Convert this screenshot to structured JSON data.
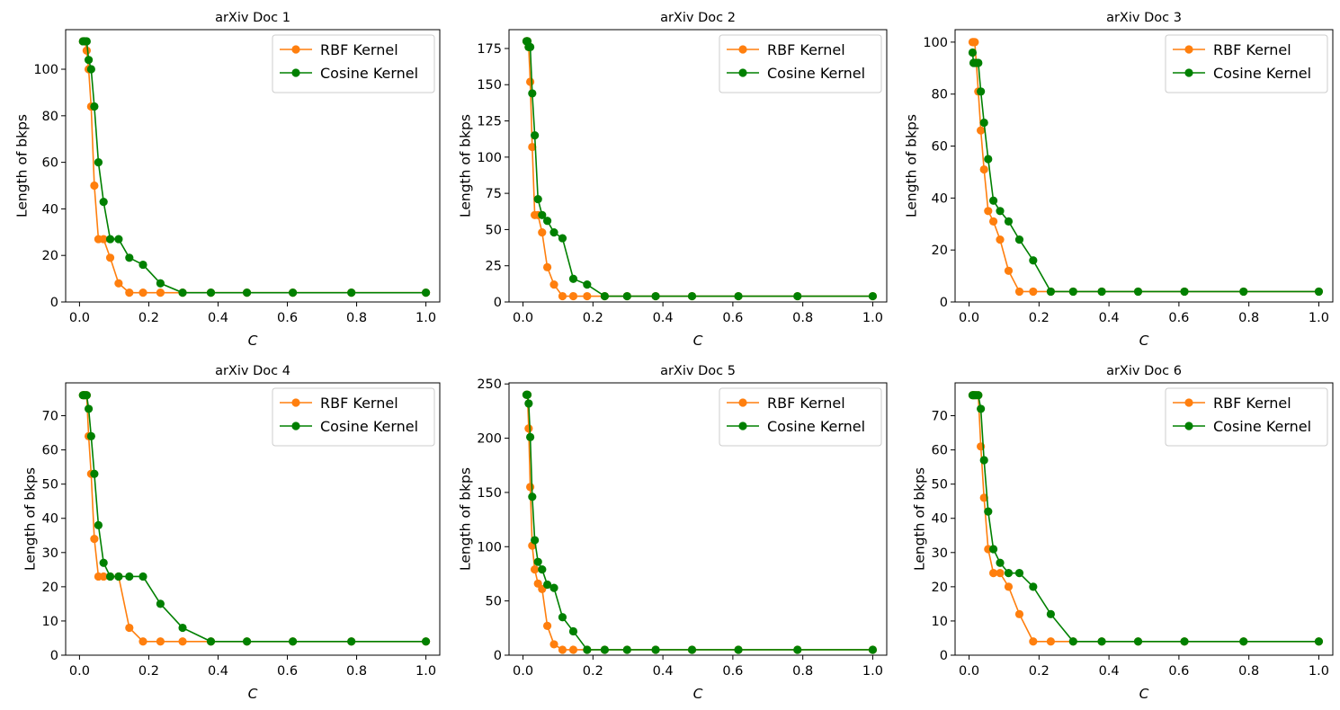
{
  "chart_data": [
    {
      "type": "line",
      "title": "arXiv Doc 1",
      "xlabel": "C",
      "ylabel": "Length of bkps",
      "xlim": [
        -0.04,
        1.04
      ],
      "ylim": [
        0,
        117
      ],
      "xticks": [
        0.0,
        0.2,
        0.4,
        0.6,
        0.8,
        1.0
      ],
      "xtick_labels": [
        "0.0",
        "0.2",
        "0.4",
        "0.6",
        "0.8",
        "1.0"
      ],
      "yticks": [
        0,
        20,
        40,
        60,
        80,
        100
      ],
      "ytick_labels": [
        "0",
        "20",
        "40",
        "60",
        "80",
        "100"
      ],
      "legend_position": "upper right",
      "series": [
        {
          "name": "RBF Kernel",
          "color": "#ff7f0e",
          "x": [
            0.01,
            0.0127,
            0.0162,
            0.0207,
            0.0264,
            0.0336,
            0.0428,
            0.0546,
            0.0695,
            0.0886,
            0.1129,
            0.1438,
            0.1833,
            0.2336,
            0.2976,
            0.3793,
            0.4833,
            0.6158,
            0.7848,
            1.0
          ],
          "y": [
            112,
            112,
            112,
            108,
            100,
            84,
            50,
            27,
            27,
            19,
            8,
            4,
            4,
            4,
            4,
            4,
            4,
            4,
            4,
            4
          ]
        },
        {
          "name": "Cosine Kernel",
          "color": "#008000",
          "x": [
            0.01,
            0.0127,
            0.0162,
            0.0207,
            0.0264,
            0.0336,
            0.0428,
            0.0546,
            0.0695,
            0.0886,
            0.1129,
            0.1438,
            0.1833,
            0.2336,
            0.2976,
            0.3793,
            0.4833,
            0.6158,
            0.7848,
            1.0
          ],
          "y": [
            112,
            112,
            112,
            112,
            104,
            100,
            84,
            60,
            43,
            27,
            27,
            19,
            16,
            8,
            4,
            4,
            4,
            4,
            4,
            4
          ]
        }
      ]
    },
    {
      "type": "line",
      "title": "arXiv Doc 2",
      "xlabel": "C",
      "ylabel": "Length of bkps",
      "xlim": [
        -0.04,
        1.04
      ],
      "ylim": [
        0,
        188
      ],
      "xticks": [
        0.0,
        0.2,
        0.4,
        0.6,
        0.8,
        1.0
      ],
      "xtick_labels": [
        "0.0",
        "0.2",
        "0.4",
        "0.6",
        "0.8",
        "1.0"
      ],
      "yticks": [
        0,
        25,
        50,
        75,
        100,
        125,
        150,
        175
      ],
      "ytick_labels": [
        "0",
        "25",
        "50",
        "75",
        "100",
        "125",
        "150",
        "175"
      ],
      "legend_position": "upper right",
      "series": [
        {
          "name": "RBF Kernel",
          "color": "#ff7f0e",
          "x": [
            0.01,
            0.0127,
            0.0162,
            0.0207,
            0.0264,
            0.0336,
            0.0428,
            0.0546,
            0.0695,
            0.0886,
            0.1129,
            0.1438,
            0.1833,
            0.2336,
            0.2976,
            0.3793,
            0.4833,
            0.6158,
            0.7848,
            1.0
          ],
          "y": [
            180,
            180,
            176,
            152,
            107,
            60,
            60,
            48,
            24,
            12,
            4,
            4,
            4,
            4,
            4,
            4,
            4,
            4,
            4,
            4
          ]
        },
        {
          "name": "Cosine Kernel",
          "color": "#008000",
          "x": [
            0.01,
            0.0127,
            0.0162,
            0.0207,
            0.0264,
            0.0336,
            0.0428,
            0.0546,
            0.0695,
            0.0886,
            0.1129,
            0.1438,
            0.1833,
            0.2336,
            0.2976,
            0.3793,
            0.4833,
            0.6158,
            0.7848,
            1.0
          ],
          "y": [
            180,
            180,
            176,
            176,
            144,
            115,
            71,
            60,
            56,
            48,
            44,
            16,
            12,
            4,
            4,
            4,
            4,
            4,
            4,
            4
          ]
        }
      ]
    },
    {
      "type": "line",
      "title": "arXiv Doc 3",
      "xlabel": "C",
      "ylabel": "Length of bkps",
      "xlim": [
        -0.04,
        1.04
      ],
      "ylim": [
        0,
        104.8
      ],
      "xticks": [
        0.0,
        0.2,
        0.4,
        0.6,
        0.8,
        1.0
      ],
      "xtick_labels": [
        "0.0",
        "0.2",
        "0.4",
        "0.6",
        "0.8",
        "1.0"
      ],
      "yticks": [
        0,
        20,
        40,
        60,
        80,
        100
      ],
      "ytick_labels": [
        "0",
        "20",
        "40",
        "60",
        "80",
        "100"
      ],
      "legend_position": "upper right",
      "series": [
        {
          "name": "RBF Kernel",
          "color": "#ff7f0e",
          "x": [
            0.01,
            0.0127,
            0.0162,
            0.0207,
            0.0264,
            0.0336,
            0.0428,
            0.0546,
            0.0695,
            0.0886,
            0.1129,
            0.1438,
            0.1833,
            0.2336,
            0.2976,
            0.3793,
            0.4833,
            0.6158,
            0.7848,
            1.0
          ],
          "y": [
            100,
            100,
            100,
            92,
            81,
            66,
            51,
            35,
            31,
            24,
            12,
            4,
            4,
            4,
            4,
            4,
            4,
            4,
            4,
            4
          ]
        },
        {
          "name": "Cosine Kernel",
          "color": "#008000",
          "x": [
            0.01,
            0.0127,
            0.0162,
            0.0207,
            0.0264,
            0.0336,
            0.0428,
            0.0546,
            0.0695,
            0.0886,
            0.1129,
            0.1438,
            0.1833,
            0.2336,
            0.2976,
            0.3793,
            0.4833,
            0.6158,
            0.7848,
            1.0
          ],
          "y": [
            96,
            92,
            92,
            92,
            92,
            81,
            69,
            55,
            39,
            35,
            31,
            24,
            16,
            4,
            4,
            4,
            4,
            4,
            4,
            4
          ]
        }
      ]
    },
    {
      "type": "line",
      "title": "arXiv Doc 4",
      "xlabel": "C",
      "ylabel": "Length of bkps",
      "xlim": [
        -0.04,
        1.04
      ],
      "ylim": [
        0,
        79.6
      ],
      "xticks": [
        0.0,
        0.2,
        0.4,
        0.6,
        0.8,
        1.0
      ],
      "xtick_labels": [
        "0.0",
        "0.2",
        "0.4",
        "0.6",
        "0.8",
        "1.0"
      ],
      "yticks": [
        0,
        10,
        20,
        30,
        40,
        50,
        60,
        70
      ],
      "ytick_labels": [
        "0",
        "10",
        "20",
        "30",
        "40",
        "50",
        "60",
        "70"
      ],
      "legend_position": "upper right",
      "series": [
        {
          "name": "RBF Kernel",
          "color": "#ff7f0e",
          "x": [
            0.01,
            0.0127,
            0.0162,
            0.0207,
            0.0264,
            0.0336,
            0.0428,
            0.0546,
            0.0695,
            0.0886,
            0.1129,
            0.1438,
            0.1833,
            0.2336,
            0.2976,
            0.3793,
            0.4833,
            0.6158,
            0.7848,
            1.0
          ],
          "y": [
            76,
            76,
            76,
            76,
            64,
            53,
            34,
            23,
            23,
            23,
            23,
            8,
            4,
            4,
            4,
            4,
            4,
            4,
            4,
            4
          ]
        },
        {
          "name": "Cosine Kernel",
          "color": "#008000",
          "x": [
            0.01,
            0.0127,
            0.0162,
            0.0207,
            0.0264,
            0.0336,
            0.0428,
            0.0546,
            0.0695,
            0.0886,
            0.1129,
            0.1438,
            0.1833,
            0.2336,
            0.2976,
            0.3793,
            0.4833,
            0.6158,
            0.7848,
            1.0
          ],
          "y": [
            76,
            76,
            76,
            76,
            72,
            64,
            53,
            38,
            27,
            23,
            23,
            23,
            23,
            15,
            8,
            4,
            4,
            4,
            4,
            4
          ]
        }
      ]
    },
    {
      "type": "line",
      "title": "arXiv Doc 5",
      "xlabel": "C",
      "ylabel": "Length of bkps",
      "xlim": [
        -0.04,
        1.04
      ],
      "ylim": [
        0,
        251
      ],
      "xticks": [
        0.0,
        0.2,
        0.4,
        0.6,
        0.8,
        1.0
      ],
      "xtick_labels": [
        "0.0",
        "0.2",
        "0.4",
        "0.6",
        "0.8",
        "1.0"
      ],
      "yticks": [
        0,
        50,
        100,
        150,
        200,
        250
      ],
      "ytick_labels": [
        "0",
        "50",
        "100",
        "150",
        "200",
        "250"
      ],
      "legend_position": "upper right",
      "series": [
        {
          "name": "RBF Kernel",
          "color": "#ff7f0e",
          "x": [
            0.01,
            0.0127,
            0.0162,
            0.0207,
            0.0264,
            0.0336,
            0.0428,
            0.0546,
            0.0695,
            0.0886,
            0.1129,
            0.1438,
            0.1833,
            0.2336,
            0.2976,
            0.3793,
            0.4833,
            0.6158,
            0.7848,
            1.0
          ],
          "y": [
            240,
            240,
            209,
            155,
            101,
            79,
            66,
            61,
            27,
            10,
            5,
            5,
            5,
            5,
            5,
            5,
            5,
            5,
            5,
            5
          ]
        },
        {
          "name": "Cosine Kernel",
          "color": "#008000",
          "x": [
            0.01,
            0.0127,
            0.0162,
            0.0207,
            0.0264,
            0.0336,
            0.0428,
            0.0546,
            0.0695,
            0.0886,
            0.1129,
            0.1438,
            0.1833,
            0.2336,
            0.2976,
            0.3793,
            0.4833,
            0.6158,
            0.7848,
            1.0
          ],
          "y": [
            240,
            240,
            232,
            201,
            146,
            106,
            86,
            79,
            65,
            62,
            35,
            22,
            5,
            5,
            5,
            5,
            5,
            5,
            5,
            5
          ]
        }
      ]
    },
    {
      "type": "line",
      "title": "arXiv Doc 6",
      "xlabel": "C",
      "ylabel": "Length of bkps",
      "xlim": [
        -0.04,
        1.04
      ],
      "ylim": [
        0,
        79.6
      ],
      "xticks": [
        0.0,
        0.2,
        0.4,
        0.6,
        0.8,
        1.0
      ],
      "xtick_labels": [
        "0.0",
        "0.2",
        "0.4",
        "0.6",
        "0.8",
        "1.0"
      ],
      "yticks": [
        0,
        10,
        20,
        30,
        40,
        50,
        60,
        70
      ],
      "ytick_labels": [
        "0",
        "10",
        "20",
        "30",
        "40",
        "50",
        "60",
        "70"
      ],
      "legend_position": "upper right",
      "series": [
        {
          "name": "RBF Kernel",
          "color": "#ff7f0e",
          "x": [
            0.01,
            0.0127,
            0.0162,
            0.0207,
            0.0264,
            0.0336,
            0.0428,
            0.0546,
            0.0695,
            0.0886,
            0.1129,
            0.1438,
            0.1833,
            0.2336,
            0.2976,
            0.3793,
            0.4833,
            0.6158,
            0.7848,
            1.0
          ],
          "y": [
            76,
            76,
            76,
            76,
            76,
            61,
            46,
            31,
            24,
            24,
            20,
            12,
            4,
            4,
            4,
            4,
            4,
            4,
            4,
            4
          ]
        },
        {
          "name": "Cosine Kernel",
          "color": "#008000",
          "x": [
            0.01,
            0.0127,
            0.0162,
            0.0207,
            0.0264,
            0.0336,
            0.0428,
            0.0546,
            0.0695,
            0.0886,
            0.1129,
            0.1438,
            0.1833,
            0.2336,
            0.2976,
            0.3793,
            0.4833,
            0.6158,
            0.7848,
            1.0
          ],
          "y": [
            76,
            76,
            76,
            76,
            76,
            72,
            57,
            42,
            31,
            27,
            24,
            24,
            20,
            12,
            4,
            4,
            4,
            4,
            4,
            4
          ]
        }
      ]
    }
  ]
}
